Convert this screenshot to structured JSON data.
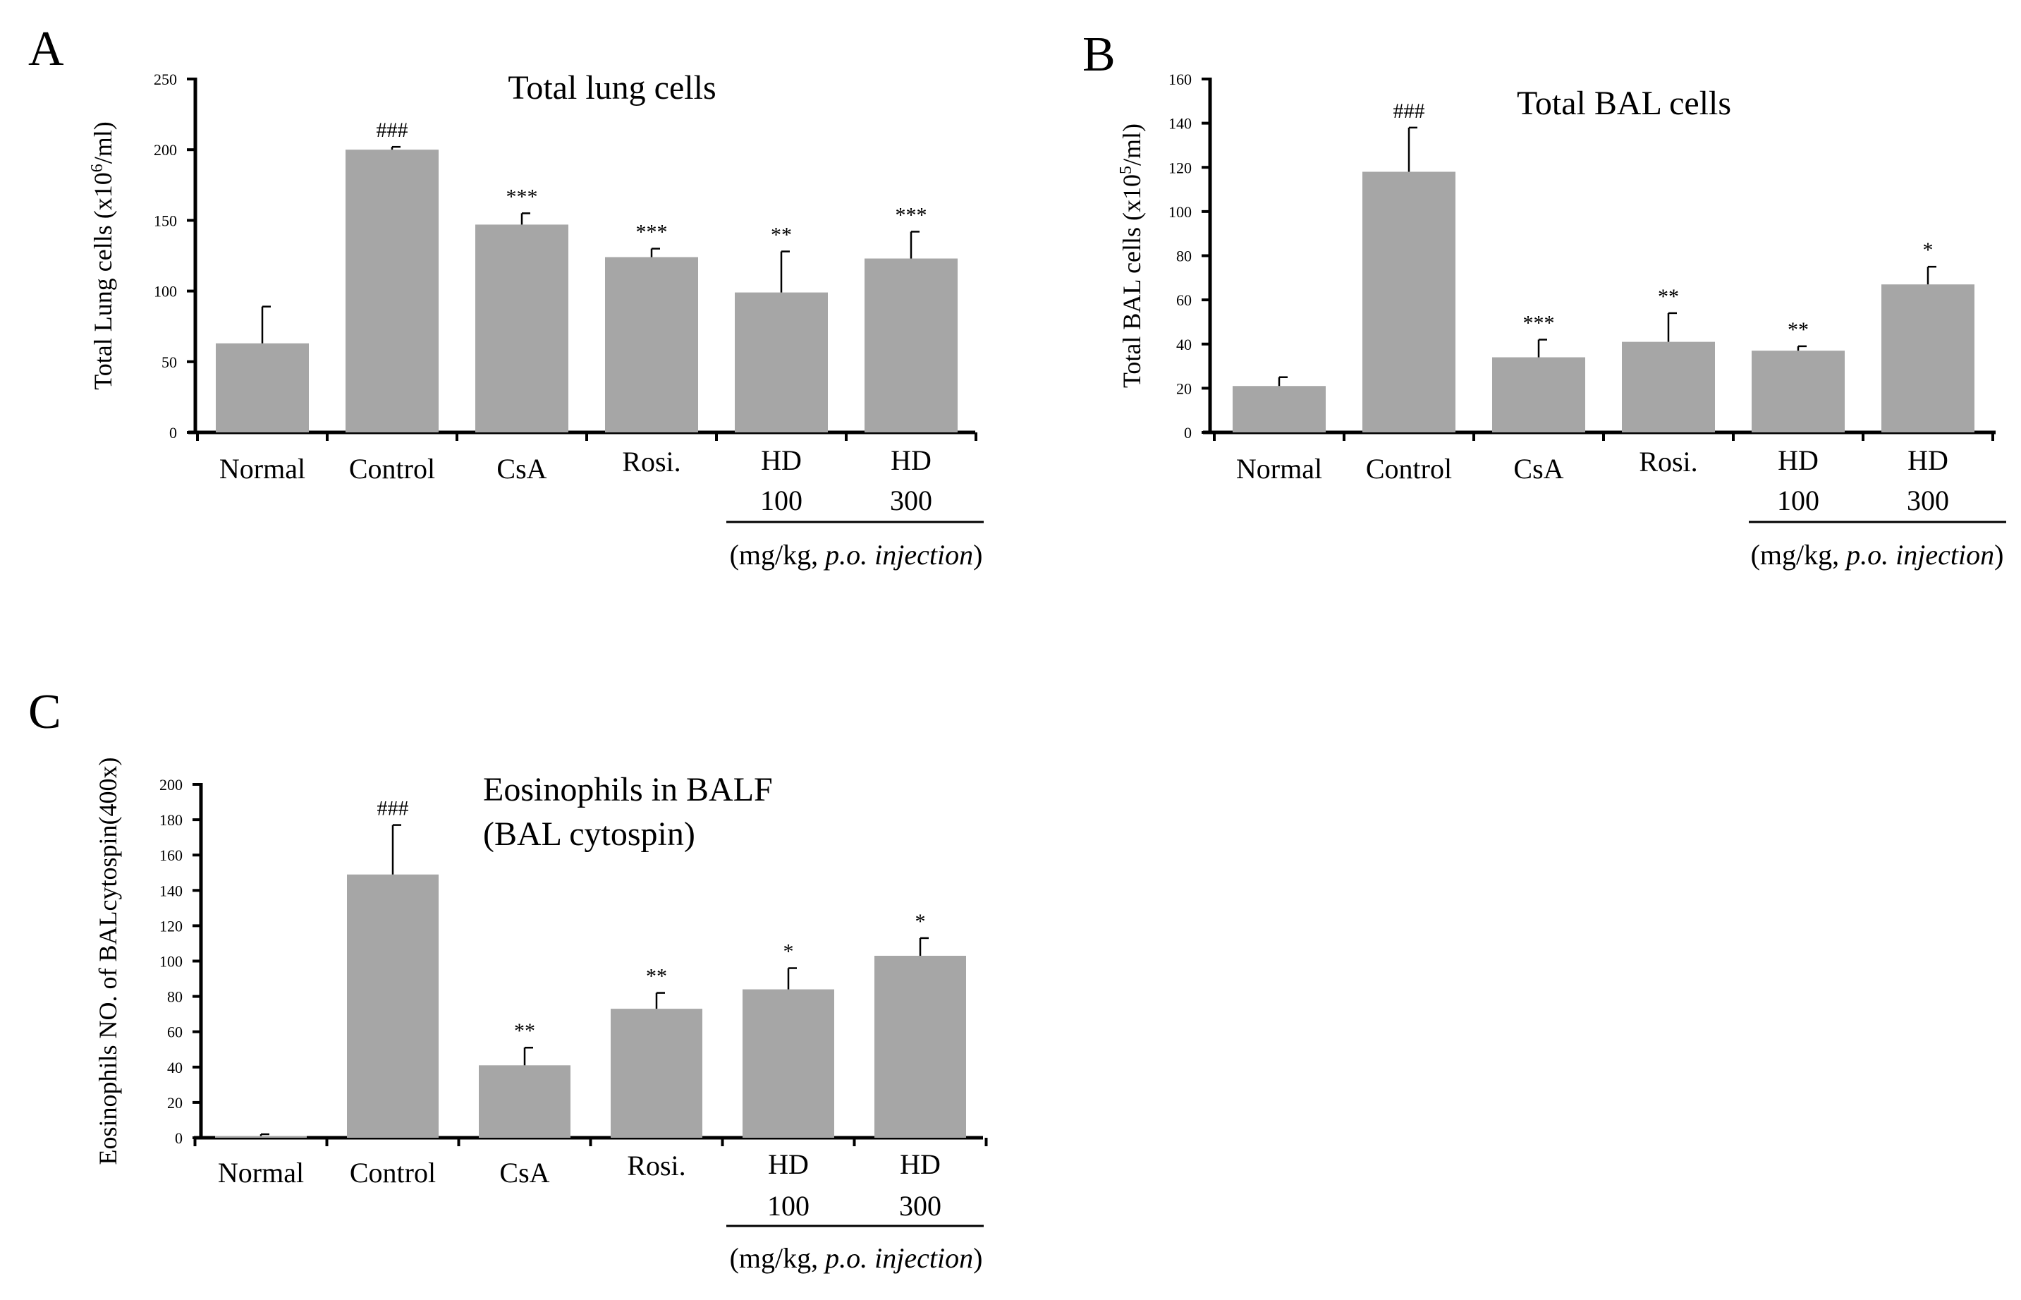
{
  "figure": {
    "unit_label_prefix": "(mg/kg, ",
    "unit_label_italic": "p.o. injection",
    "unit_label_suffix": ")",
    "bar_color": "#a6a6a6"
  },
  "chart_data": [
    {
      "type": "bar",
      "panel": "A",
      "title": [
        "Total lung cells"
      ],
      "ylabel_main": "Total  Lung cells (x10",
      "ylabel_sup": "6",
      "ylabel_tail": "/ml)",
      "ylim": [
        0,
        250
      ],
      "yticks": [
        "0",
        "50",
        "100",
        "150",
        "200",
        "250"
      ],
      "categories": [
        [
          "Normal"
        ],
        [
          "Control"
        ],
        [
          "CsA"
        ],
        [
          "Rosi."
        ],
        [
          "HD",
          "100"
        ],
        [
          "HD",
          "300"
        ]
      ],
      "values": [
        63,
        200,
        147,
        124,
        99,
        123
      ],
      "errors": [
        26,
        2,
        8,
        6,
        29,
        19
      ],
      "significance": [
        "",
        "###",
        "***",
        "***",
        "**",
        "***"
      ]
    },
    {
      "type": "bar",
      "panel": "B",
      "title": [
        "Total BAL cells"
      ],
      "ylabel_main": "Total  BAL cells (x10",
      "ylabel_sup": "5",
      "ylabel_tail": "/ml)",
      "ylim": [
        0,
        160
      ],
      "yticks": [
        "0",
        "20",
        "40",
        "60",
        "80",
        "100",
        "120",
        "140",
        "160"
      ],
      "categories": [
        [
          "Normal"
        ],
        [
          "Control"
        ],
        [
          "CsA"
        ],
        [
          "Rosi."
        ],
        [
          "HD",
          "100"
        ],
        [
          "HD",
          "300"
        ]
      ],
      "values": [
        21,
        118,
        34,
        41,
        37,
        67
      ],
      "errors": [
        4,
        20,
        8,
        13,
        2,
        8
      ],
      "significance": [
        "",
        "###",
        "***",
        "**",
        "**",
        "*"
      ]
    },
    {
      "type": "bar",
      "panel": "C",
      "title": [
        "Eosinophils in BALF",
        "(BAL cytospin)"
      ],
      "ylabel_main": "Eosinophils NO. of BALcytospin(400x)",
      "ylabel_sup": "",
      "ylabel_tail": "",
      "ylim": [
        0,
        200
      ],
      "yticks": [
        "0",
        "20",
        "40",
        "60",
        "80",
        "100",
        "120",
        "140",
        "160",
        "180",
        "200"
      ],
      "categories": [
        [
          "Normal"
        ],
        [
          "Control"
        ],
        [
          "CsA"
        ],
        [
          "Rosi."
        ],
        [
          "HD",
          "100"
        ],
        [
          "HD",
          "300"
        ]
      ],
      "values": [
        1,
        149,
        41,
        73,
        84,
        103
      ],
      "errors": [
        1,
        28,
        10,
        9,
        12,
        10
      ],
      "significance": [
        "",
        "###",
        "**",
        "**",
        "*",
        "*"
      ]
    }
  ]
}
